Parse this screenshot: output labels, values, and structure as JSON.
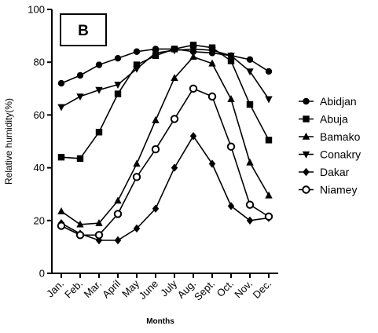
{
  "chart_data": {
    "type": "line",
    "panel_label": "B",
    "xlabel": "Months",
    "ylabel": "Relative humidity(%)",
    "categories": [
      "Jan.",
      "Feb.",
      "Mar.",
      "April",
      "May",
      "June",
      "July",
      "Aug.",
      "Sept.",
      "Oct.",
      "Nov.",
      "Dec."
    ],
    "ylim": [
      0,
      100
    ],
    "yticks": [
      0,
      20,
      40,
      60,
      80,
      100
    ],
    "grid": false,
    "legend_position": "right",
    "series": [
      {
        "name": "Abidjan",
        "marker": "circle",
        "values": [
          72,
          75,
          79,
          81.5,
          84,
          85,
          85,
          84,
          83.5,
          82.5,
          81,
          76.5
        ]
      },
      {
        "name": "Abuja",
        "marker": "square",
        "values": [
          44,
          43.5,
          53.5,
          68,
          79,
          82.5,
          85,
          86.5,
          85.5,
          80.5,
          64,
          50.5
        ]
      },
      {
        "name": "Bamako",
        "marker": "triangle-up",
        "values": [
          23.5,
          18.5,
          19,
          27.5,
          41.5,
          58,
          74,
          82,
          79.5,
          66,
          42,
          29.5
        ]
      },
      {
        "name": "Conakry",
        "marker": "triangle-down",
        "values": [
          63,
          67,
          69.5,
          71.5,
          77.5,
          83.5,
          84.5,
          85,
          84.5,
          82.5,
          76.5,
          66
        ]
      },
      {
        "name": "Dakar",
        "marker": "diamond",
        "values": [
          19,
          15,
          12.5,
          12.5,
          17,
          24.5,
          40,
          52,
          41.5,
          25.5,
          20,
          21
        ]
      },
      {
        "name": "Niamey",
        "marker": "open-circle",
        "values": [
          18,
          14.5,
          14.5,
          22.5,
          36.5,
          47,
          58.5,
          70,
          67,
          48,
          26,
          21.5
        ]
      }
    ]
  }
}
